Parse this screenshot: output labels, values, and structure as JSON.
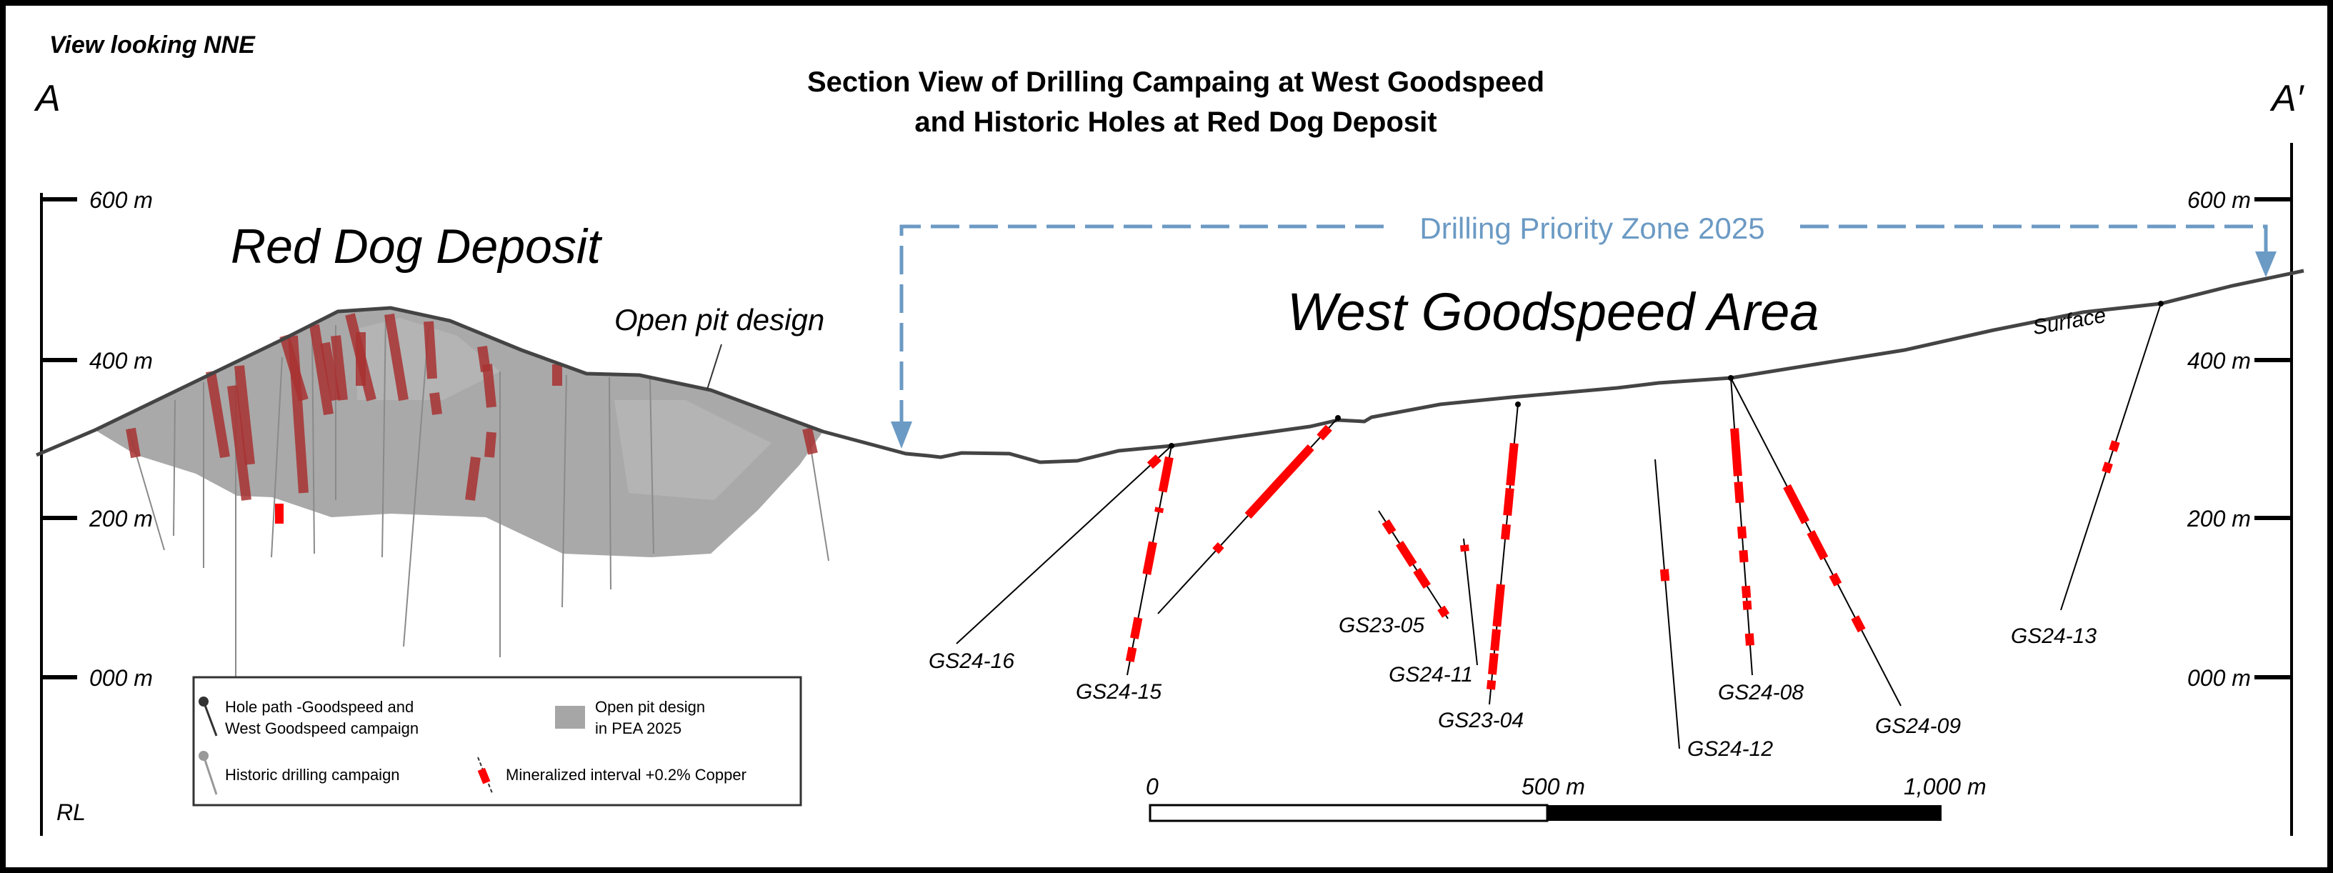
{
  "header": {
    "view_direction": "View looking NNE",
    "title_line1": "Section View of Drilling Campaing at West Goodspeed",
    "title_line2": "and Historic Holes at Red Dog Deposit",
    "section_start": "A",
    "section_end": "A′"
  },
  "axis": {
    "left_ticks": [
      "600 m",
      "400 m",
      "200 m",
      "000 m"
    ],
    "right_ticks": [
      "600 m",
      "400 m",
      "200 m",
      "000 m"
    ],
    "datum_label": "RL"
  },
  "annotations": {
    "red_dog": "Red Dog Deposit",
    "open_pit": "Open pit design",
    "west_goodspeed": "West Goodspeed Area",
    "priority_zone": "Drilling Priority Zone 2025",
    "surface": "Surface"
  },
  "holes": [
    "GS24-16",
    "GS24-15",
    "GS23-05",
    "GS24-11",
    "GS23-04",
    "GS24-12",
    "GS24-08",
    "GS24-09",
    "GS24-13"
  ],
  "legend": {
    "hole_path": [
      "Hole path -Goodspeed and",
      "West Goodspeed campaign"
    ],
    "open_pit": [
      "Open pit design",
      "in PEA 2025"
    ],
    "historic": "Historic drilling campaign",
    "mineralized": "Mineralized interval +0.2% Copper"
  },
  "scale_bar": {
    "labels": [
      "0",
      "500 m",
      "1,000 m"
    ]
  },
  "colors": {
    "priority": "#6b9ac4",
    "mineral": "#ff0000",
    "historic_mineral": "#a83232",
    "pit": "#a6a6a6"
  }
}
